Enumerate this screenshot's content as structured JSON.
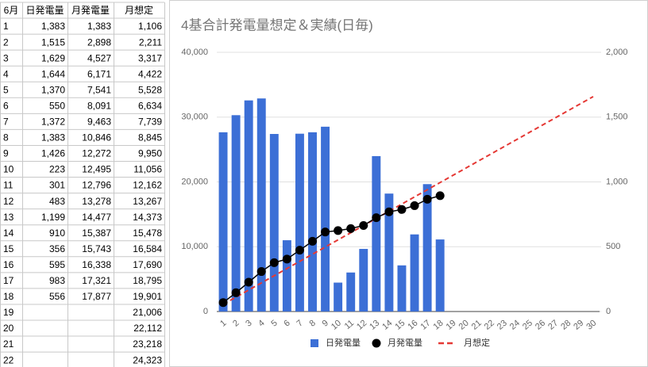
{
  "table": {
    "header": [
      "6月",
      "日発電量",
      "月発電量",
      "月想定"
    ],
    "rows": [
      [
        "1",
        "1,383",
        "1,383",
        "1,106"
      ],
      [
        "2",
        "1,515",
        "2,898",
        "2,211"
      ],
      [
        "3",
        "1,629",
        "4,527",
        "3,317"
      ],
      [
        "4",
        "1,644",
        "6,171",
        "4,422"
      ],
      [
        "5",
        "1,370",
        "7,541",
        "5,528"
      ],
      [
        "6",
        "550",
        "8,091",
        "6,634"
      ],
      [
        "7",
        "1,372",
        "9,463",
        "7,739"
      ],
      [
        "8",
        "1,383",
        "10,846",
        "8,845"
      ],
      [
        "9",
        "1,426",
        "12,272",
        "9,950"
      ],
      [
        "10",
        "223",
        "12,495",
        "11,056"
      ],
      [
        "11",
        "301",
        "12,796",
        "12,162"
      ],
      [
        "12",
        "483",
        "13,278",
        "13,267"
      ],
      [
        "13",
        "1,199",
        "14,477",
        "14,373"
      ],
      [
        "14",
        "910",
        "15,387",
        "15,478"
      ],
      [
        "15",
        "356",
        "15,743",
        "16,584"
      ],
      [
        "16",
        "595",
        "16,338",
        "17,690"
      ],
      [
        "17",
        "983",
        "17,321",
        "18,795"
      ],
      [
        "18",
        "556",
        "17,877",
        "19,901"
      ],
      [
        "19",
        null,
        null,
        "21,006"
      ],
      [
        "20",
        null,
        null,
        "22,112"
      ],
      [
        "21",
        null,
        null,
        "23,218"
      ],
      [
        "22",
        null,
        null,
        "24,323"
      ]
    ]
  },
  "chart_data": {
    "type": "combo",
    "title": "4基合計発電量想定＆実績(日毎)",
    "categories": [
      "1",
      "2",
      "3",
      "4",
      "5",
      "6",
      "7",
      "8",
      "9",
      "10",
      "11",
      "12",
      "13",
      "14",
      "15",
      "16",
      "17",
      "18",
      "19",
      "20",
      "21",
      "22",
      "23",
      "24",
      "25",
      "26",
      "27",
      "28",
      "29",
      "30"
    ],
    "ylim": [
      0,
      40000
    ],
    "yticks": [
      0,
      {
        "value": 10000,
        "label": "10,000"
      },
      {
        "value": 20000,
        "label": "20,000"
      },
      {
        "value": 30000,
        "label": "30,000"
      },
      {
        "value": 40000,
        "label": "40,000"
      }
    ],
    "y2lim": [
      0,
      2000
    ],
    "y2ticks": [
      0,
      500,
      {
        "value": 1000,
        "label": "1,000"
      },
      {
        "value": 1500,
        "label": "1,500"
      },
      {
        "value": 2000,
        "label": "2,000"
      }
    ],
    "grid": true,
    "legend": "bottom",
    "series": [
      {
        "name": "日発電量",
        "type": "bar",
        "axis": "y2",
        "color": "#3c6fd6",
        "values": [
          1383,
          1515,
          1629,
          1644,
          1370,
          550,
          1372,
          1383,
          1426,
          223,
          301,
          483,
          1199,
          910,
          356,
          595,
          983,
          556,
          null,
          null,
          null,
          null,
          null,
          null,
          null,
          null,
          null,
          null,
          null,
          null
        ]
      },
      {
        "name": "月発電量",
        "type": "line",
        "axis": "y",
        "color": "#000000",
        "values": [
          1383,
          2898,
          4527,
          6171,
          7541,
          8091,
          9463,
          10846,
          12272,
          12495,
          12796,
          13278,
          14477,
          15387,
          15743,
          16338,
          17321,
          17877,
          null,
          null,
          null,
          null,
          null,
          null,
          null,
          null,
          null,
          null,
          null,
          null
        ]
      },
      {
        "name": "月想定",
        "type": "dashed",
        "axis": "y",
        "color": "#e53935",
        "values": [
          1106,
          2211,
          3317,
          4422,
          5528,
          6634,
          7739,
          8845,
          9950,
          11056,
          12162,
          13267,
          14373,
          15478,
          16584,
          17690,
          18795,
          19901,
          21006,
          22112,
          23218,
          24323,
          25429,
          26534,
          27640,
          28746,
          29851,
          30957,
          32062,
          33168
        ]
      }
    ]
  }
}
